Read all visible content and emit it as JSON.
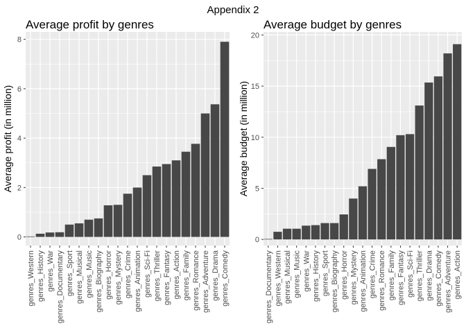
{
  "figure_title": "Appendix 2",
  "chart_data": [
    {
      "type": "bar",
      "title": "Average profit by genres",
      "xlabel": "",
      "ylabel": "Average profit (in million)",
      "ylim": [
        -0.35,
        8.3
      ],
      "yticks": [
        0,
        2,
        4,
        6,
        8
      ],
      "grid": true,
      "bar_color": "#474747",
      "panel_bg": "#ebebeb",
      "categories": [
        "genres_Western",
        "genres_History",
        "genres_War",
        "genres_Documentary",
        "genres_Sport",
        "genres_Musical",
        "genres_Music",
        "genres_Biography",
        "genres_Horror",
        "genres_Mystery",
        "genres_Crime",
        "genres_Animation",
        "genres_Sci-Fi",
        "genres_Thriller",
        "genres_Fantasy",
        "genres_Action",
        "genres_Family",
        "genres_Romance",
        "genres_Adventure",
        "genres_Drama",
        "genres_Comedy"
      ],
      "values": [
        0.02,
        0.13,
        0.18,
        0.19,
        0.5,
        0.55,
        0.7,
        0.75,
        1.28,
        1.3,
        1.75,
        2.0,
        2.5,
        2.85,
        2.95,
        3.1,
        3.45,
        3.77,
        5.0,
        5.37,
        7.9
      ]
    },
    {
      "type": "bar",
      "title": "Average budget by genres",
      "xlabel": "",
      "ylabel": "Average budget (in million)",
      "ylim": [
        -0.6,
        20.3
      ],
      "yticks": [
        0,
        5,
        10,
        15,
        20
      ],
      "grid": true,
      "bar_color": "#474747",
      "panel_bg": "#ebebeb",
      "categories": [
        "genres_Documentary",
        "genres_Western",
        "genres_Musical",
        "genres_Music",
        "genres_War",
        "genres_History",
        "genres_Sport",
        "genres_Biography",
        "genres_Horror",
        "genres_Mystery",
        "genres_Animation",
        "genres_Crime",
        "genres_Romance",
        "genres_Family",
        "genres_Fantasy",
        "genres_Sci-Fi",
        "genres_Thriller",
        "genres_Drama",
        "genres_Comedy",
        "genres_Adventure",
        "genres_Action"
      ],
      "values": [
        0.05,
        0.75,
        1.05,
        1.05,
        1.35,
        1.4,
        1.6,
        1.6,
        2.45,
        4.0,
        5.2,
        6.9,
        7.85,
        9.05,
        10.2,
        10.3,
        13.1,
        15.35,
        15.95,
        18.2,
        19.1
      ]
    }
  ]
}
